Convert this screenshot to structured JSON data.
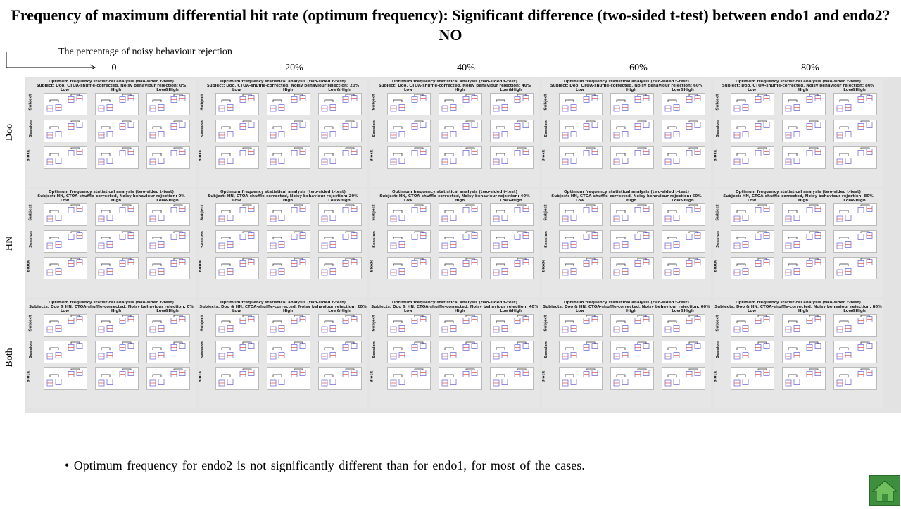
{
  "slide": {
    "title": "Frequency of maximum differential hit rate (optimum frequency): Significant difference (two-sided t-test) between endo1 and endo2? NO",
    "axis_label": "The percentage of noisy behaviour rejection",
    "columns": [
      "0",
      "20%",
      "40%",
      "60%",
      "80%"
    ],
    "rows": [
      "Doo",
      "HN",
      "Both"
    ],
    "bullet": "• Optimum frequency for endo2 is not significantly different than for endo1, for most of the cases."
  },
  "figure": {
    "panel_title_main": "Optimum frequency statistical analysis (two-sided t-test)",
    "subjects": [
      "Subject: Doo",
      "Subject: HN",
      "Subjects: Doo & HN"
    ],
    "subtitle_suffix": ", CTOA-shuffle-corrected, Noisy behaviour rejection: ",
    "rejections": [
      "0%",
      "20%",
      "40%",
      "60%",
      "80%"
    ],
    "sub_columns": [
      "Low",
      "High",
      "Low&High"
    ],
    "sub_rows": [
      "Subject",
      "Session",
      "Block"
    ]
  },
  "colors": {
    "box": "#7b6fd6",
    "median": "#e06060",
    "panel_bg": "#e6e6e6",
    "home_button": "#3d8f3d"
  },
  "icons": {
    "home": "home-icon",
    "axis": "arrow-right-icon"
  }
}
